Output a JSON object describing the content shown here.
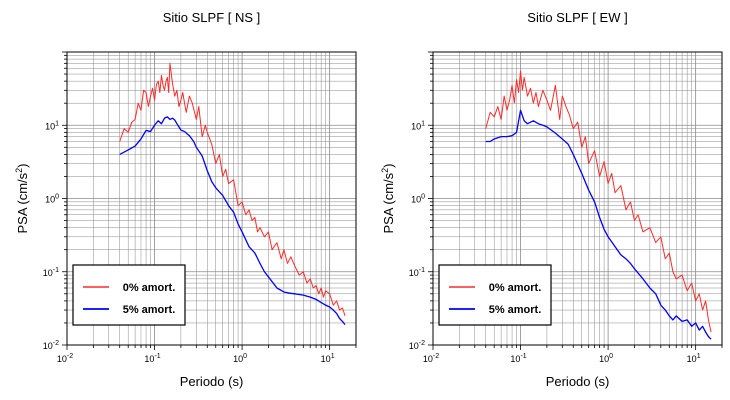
{
  "colors": {
    "undamped": "#ff2a2a",
    "damped": "#0000ff",
    "grid": "#8a8a8a",
    "frame": "#000000"
  },
  "chart_data": [
    {
      "type": "line",
      "title": "Sitio SLPF [ NS ]",
      "xlabel": "Periodo (s)",
      "ylabel_main": "PSA (cm/s",
      "ylabel_sup": "2",
      "ylabel_close": ")",
      "xscale": "log",
      "yscale": "log",
      "xlim": [
        0.01,
        20
      ],
      "ylim": [
        0.01,
        100
      ],
      "grid": true,
      "legend_position": "bottom-left",
      "xticks": [
        {
          "base": "10",
          "exp": "-2"
        },
        {
          "base": "10",
          "exp": "-1"
        },
        {
          "base": "10",
          "exp": "0"
        },
        {
          "base": "10",
          "exp": "1"
        }
      ],
      "yticks": [
        {
          "base": "10",
          "exp": "-2"
        },
        {
          "base": "10",
          "exp": "-1"
        },
        {
          "base": "10",
          "exp": "0"
        },
        {
          "base": "10",
          "exp": "1"
        }
      ],
      "series": [
        {
          "name": "0% amort.",
          "color": "#ff2a2a",
          "x": [
            0.04,
            0.045,
            0.05,
            0.055,
            0.06,
            0.065,
            0.07,
            0.075,
            0.08,
            0.085,
            0.09,
            0.095,
            0.1,
            0.105,
            0.11,
            0.115,
            0.12,
            0.125,
            0.13,
            0.135,
            0.14,
            0.145,
            0.15,
            0.16,
            0.17,
            0.18,
            0.19,
            0.2,
            0.21,
            0.22,
            0.23,
            0.25,
            0.27,
            0.3,
            0.32,
            0.35,
            0.38,
            0.4,
            0.45,
            0.5,
            0.55,
            0.6,
            0.65,
            0.7,
            0.8,
            0.9,
            1.0,
            1.1,
            1.2,
            1.3,
            1.4,
            1.5,
            1.6,
            1.8,
            2.0,
            2.2,
            2.5,
            2.8,
            3.0,
            3.3,
            3.6,
            4.0,
            4.5,
            5.0,
            5.5,
            6.0,
            6.5,
            7.0,
            7.5,
            8.0,
            8.5,
            9.0,
            10.0,
            11.0,
            12.0,
            13.0,
            14.0,
            15.0
          ],
          "y": [
            6,
            9,
            8,
            11,
            12,
            20,
            16,
            30,
            28,
            18,
            25,
            32,
            22,
            36,
            40,
            28,
            48,
            35,
            30,
            40,
            45,
            28,
            70,
            38,
            25,
            30,
            18,
            22,
            28,
            20,
            15,
            25,
            20,
            12,
            18,
            7,
            10,
            8,
            5.5,
            3,
            4,
            2,
            2.5,
            1.6,
            1.8,
            0.8,
            0.9,
            0.6,
            0.7,
            0.5,
            0.55,
            0.35,
            0.4,
            0.3,
            0.35,
            0.2,
            0.25,
            0.15,
            0.2,
            0.13,
            0.16,
            0.12,
            0.09,
            0.1,
            0.07,
            0.08,
            0.06,
            0.065,
            0.05,
            0.06,
            0.045,
            0.055,
            0.05,
            0.035,
            0.04,
            0.03,
            0.032,
            0.025
          ]
        },
        {
          "name": "5% amort.",
          "color": "#0000ff",
          "x": [
            0.04,
            0.05,
            0.06,
            0.07,
            0.08,
            0.09,
            0.1,
            0.11,
            0.12,
            0.13,
            0.14,
            0.15,
            0.16,
            0.17,
            0.18,
            0.2,
            0.22,
            0.25,
            0.28,
            0.3,
            0.35,
            0.4,
            0.45,
            0.5,
            0.6,
            0.7,
            0.8,
            0.9,
            1.0,
            1.2,
            1.4,
            1.6,
            1.8,
            2.0,
            2.5,
            3.0,
            3.5,
            4.0,
            5.0,
            6.0,
            7.0,
            8.0,
            9.0,
            10.0,
            11.0,
            12.0,
            13.0,
            14.0,
            15.0
          ],
          "y": [
            4,
            4.6,
            5.2,
            6.5,
            8.5,
            8.2,
            10,
            11.5,
            10.5,
            12.5,
            13,
            12,
            12.5,
            11.8,
            10.5,
            8.6,
            8.2,
            7.2,
            6,
            5,
            3.8,
            2.4,
            1.7,
            1.4,
            1.1,
            0.8,
            0.65,
            0.45,
            0.35,
            0.22,
            0.18,
            0.13,
            0.1,
            0.085,
            0.06,
            0.053,
            0.051,
            0.05,
            0.048,
            0.045,
            0.042,
            0.038,
            0.035,
            0.033,
            0.03,
            0.027,
            0.023,
            0.021,
            0.019
          ]
        }
      ]
    },
    {
      "type": "line",
      "title": "Sitio SLPF [ EW ]",
      "xlabel": "Periodo (s)",
      "ylabel_main": "PSA (cm/s",
      "ylabel_sup": "2",
      "ylabel_close": ")",
      "xscale": "log",
      "yscale": "log",
      "xlim": [
        0.01,
        20
      ],
      "ylim": [
        0.01,
        100
      ],
      "grid": true,
      "legend_position": "bottom-left",
      "xticks": [
        {
          "base": "10",
          "exp": "-2"
        },
        {
          "base": "10",
          "exp": "-1"
        },
        {
          "base": "10",
          "exp": "0"
        },
        {
          "base": "10",
          "exp": "1"
        }
      ],
      "yticks": [
        {
          "base": "10",
          "exp": "-2"
        },
        {
          "base": "10",
          "exp": "-1"
        },
        {
          "base": "10",
          "exp": "0"
        },
        {
          "base": "10",
          "exp": "1"
        }
      ],
      "series": [
        {
          "name": "0% amort.",
          "color": "#ff2a2a",
          "x": [
            0.04,
            0.045,
            0.05,
            0.055,
            0.06,
            0.065,
            0.07,
            0.075,
            0.08,
            0.085,
            0.09,
            0.095,
            0.1,
            0.105,
            0.11,
            0.12,
            0.13,
            0.14,
            0.15,
            0.16,
            0.18,
            0.2,
            0.22,
            0.25,
            0.28,
            0.3,
            0.33,
            0.36,
            0.4,
            0.45,
            0.5,
            0.55,
            0.6,
            0.7,
            0.8,
            0.9,
            1.0,
            1.1,
            1.2,
            1.4,
            1.6,
            1.8,
            2.0,
            2.2,
            2.5,
            3.0,
            3.5,
            4.0,
            4.5,
            5.0,
            5.5,
            6.0,
            7.0,
            8.0,
            9.0,
            10.0,
            11.0,
            12.0,
            13.0,
            14.0,
            15.0
          ],
          "y": [
            9,
            15,
            13,
            18,
            12,
            25,
            16,
            22,
            35,
            20,
            42,
            28,
            55,
            30,
            45,
            25,
            32,
            20,
            28,
            18,
            30,
            22,
            16,
            35,
            12,
            25,
            18,
            14,
            9,
            11,
            5,
            7,
            3,
            4.5,
            2,
            3.2,
            1.6,
            2.2,
            1.2,
            1.5,
            0.7,
            0.9,
            0.5,
            0.6,
            0.35,
            0.4,
            0.25,
            0.3,
            0.15,
            0.18,
            0.1,
            0.08,
            0.09,
            0.055,
            0.07,
            0.04,
            0.05,
            0.03,
            0.04,
            0.022,
            0.015
          ]
        },
        {
          "name": "5% amort.",
          "color": "#0000ff",
          "x": [
            0.04,
            0.045,
            0.05,
            0.06,
            0.07,
            0.08,
            0.09,
            0.1,
            0.11,
            0.12,
            0.14,
            0.16,
            0.18,
            0.2,
            0.25,
            0.3,
            0.35,
            0.4,
            0.5,
            0.6,
            0.7,
            0.8,
            0.9,
            1.0,
            1.2,
            1.4,
            1.6,
            1.8,
            2.0,
            2.5,
            3.0,
            3.5,
            4.0,
            4.5,
            5.0,
            5.5,
            6.0,
            7.0,
            8.0,
            9.0,
            10.0,
            11.0,
            12.0,
            13.0,
            14.0,
            15.0
          ],
          "y": [
            6,
            6,
            6.5,
            7,
            7,
            7.2,
            8,
            16,
            11.5,
            10.5,
            11.5,
            10.5,
            10,
            9.5,
            7.8,
            6.5,
            5.5,
            4,
            2.2,
            1.3,
            0.9,
            0.55,
            0.38,
            0.3,
            0.22,
            0.17,
            0.15,
            0.13,
            0.11,
            0.08,
            0.06,
            0.05,
            0.035,
            0.03,
            0.025,
            0.022,
            0.025,
            0.021,
            0.022,
            0.018,
            0.02,
            0.016,
            0.018,
            0.015,
            0.013,
            0.012
          ]
        }
      ]
    }
  ]
}
